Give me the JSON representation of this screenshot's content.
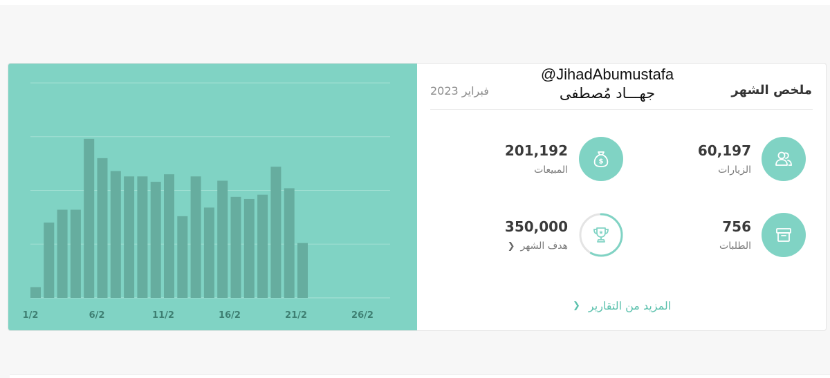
{
  "summary": {
    "title": "ملخص الشهر",
    "month": "فبراير 2023",
    "watermark": {
      "handle": "@JihadAbumustafa",
      "name": "جهـــاد مُصطفى"
    },
    "stats": {
      "visits": {
        "value": "60,197",
        "label": "الزيارات",
        "icon": "users-icon"
      },
      "sales": {
        "value": "201,192",
        "label": "المبيعات",
        "icon": "money-bag-icon"
      },
      "orders": {
        "value": "756",
        "label": "الطلبات",
        "icon": "box-icon"
      },
      "goal": {
        "value": "350,000",
        "label": "هدف الشهر",
        "icon": "trophy-icon",
        "progress": 0.58
      }
    },
    "more_reports": "المزيد من التقارير"
  },
  "colors": {
    "accent": "#80d3c4",
    "bar": "#66ad9f",
    "link": "#5cc1ad",
    "grid": "#a3e0d4"
  },
  "chart_data": {
    "type": "bar",
    "x_tick_labels": [
      "1/2",
      "6/2",
      "11/2",
      "16/2",
      "21/2",
      "26/2"
    ],
    "x": [
      "1/2",
      "2/2",
      "3/2",
      "4/2",
      "5/2",
      "6/2",
      "7/2",
      "8/2",
      "9/2",
      "10/2",
      "11/2",
      "12/2",
      "13/2",
      "14/2",
      "15/2",
      "16/2",
      "17/2",
      "18/2",
      "19/2",
      "20/2",
      "21/2",
      "22/2",
      "23/2",
      "24/2",
      "25/2",
      "26/2",
      "27/2",
      "28/2"
    ],
    "values": [
      5,
      35,
      41,
      41,
      74,
      65,
      59,
      56.5,
      56.5,
      54,
      57.5,
      38,
      56.5,
      42,
      54.5,
      47,
      46,
      48,
      61,
      51,
      25.5,
      null,
      null,
      null,
      null,
      null,
      null,
      null
    ],
    "ylim": [
      0,
      100
    ],
    "grid": true
  }
}
